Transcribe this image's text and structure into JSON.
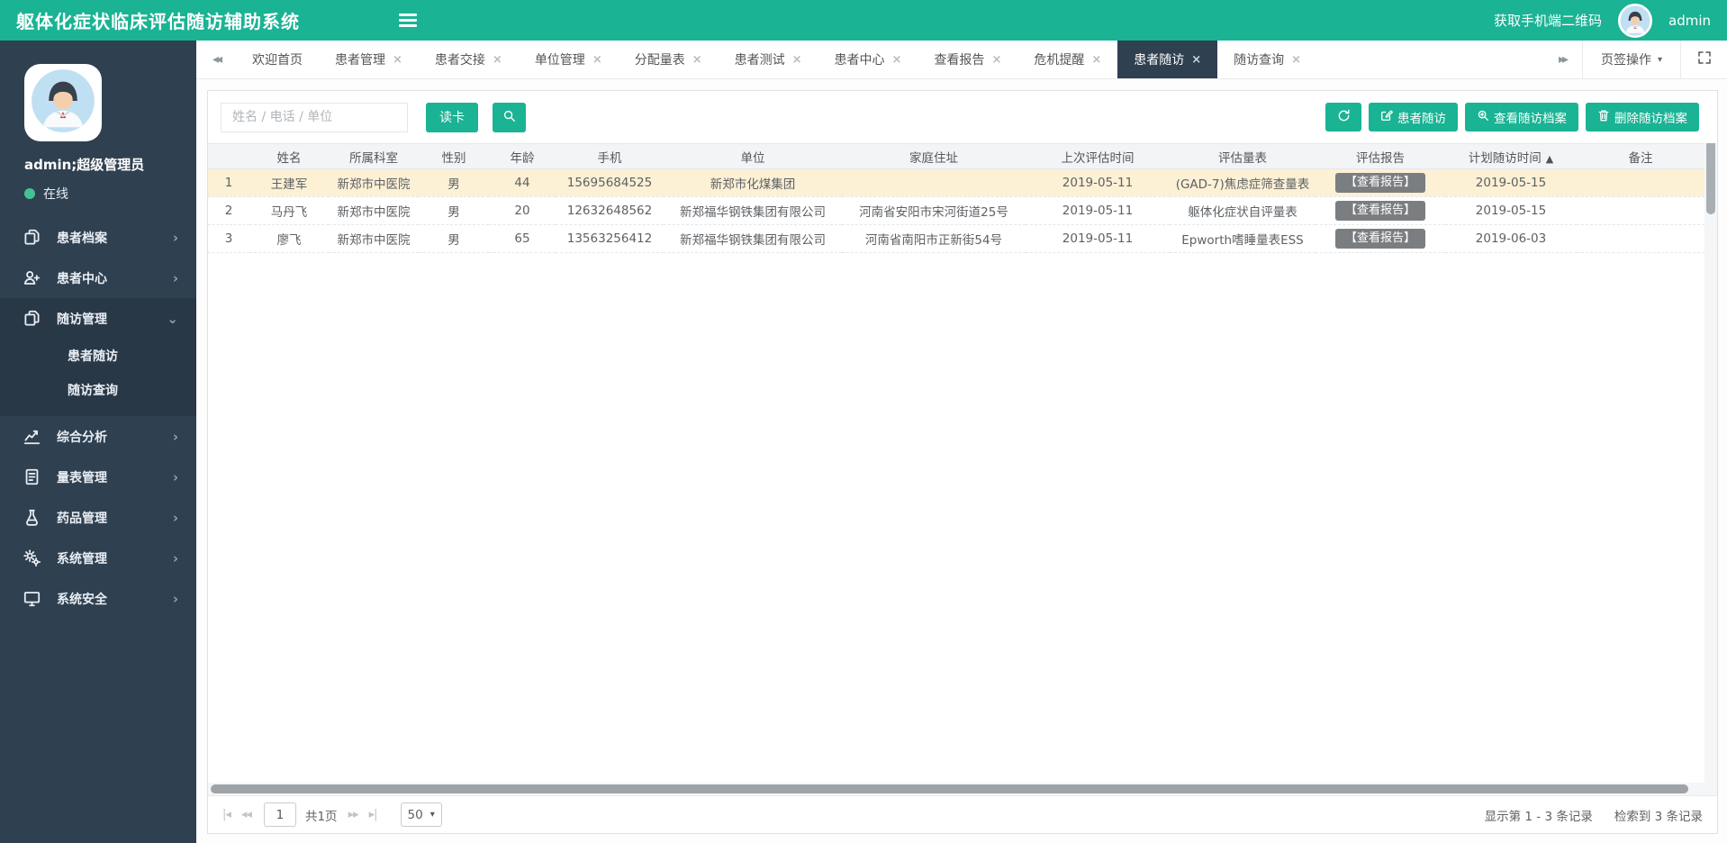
{
  "colors": {
    "accent": "#1ab394",
    "topbar_bg": "#1ab394",
    "sidebar_bg": "#2f4050",
    "sidebar_active_bg": "#293846",
    "tab_active_bg": "#2f4050",
    "selected_row_bg": "#fcf0d5",
    "report_button_bg": "#7b7e81"
  },
  "topbar": {
    "title": "躯体化症状临床评估随访辅助系统",
    "qr_label": "获取手机端二维码",
    "username": "admin"
  },
  "tabbar": {
    "ops_label": "页签操作",
    "tabs": [
      {
        "label": "欢迎首页",
        "closable": false,
        "active": false
      },
      {
        "label": "患者管理",
        "closable": true,
        "active": false
      },
      {
        "label": "患者交接",
        "closable": true,
        "active": false
      },
      {
        "label": "单位管理",
        "closable": true,
        "active": false
      },
      {
        "label": "分配量表",
        "closable": true,
        "active": false
      },
      {
        "label": "患者测试",
        "closable": true,
        "active": false
      },
      {
        "label": "患者中心",
        "closable": true,
        "active": false
      },
      {
        "label": "查看报告",
        "closable": true,
        "active": false
      },
      {
        "label": "危机提醒",
        "closable": true,
        "active": false
      },
      {
        "label": "患者随访",
        "closable": true,
        "active": true
      },
      {
        "label": "随访查询",
        "closable": true,
        "active": false
      }
    ]
  },
  "sidebar": {
    "user": {
      "name": "admin;超级管理员",
      "status": "在线"
    },
    "menu": [
      {
        "label": "患者档案",
        "icon": "copy-icon",
        "expanded": false,
        "children": []
      },
      {
        "label": "患者中心",
        "icon": "user-plus-icon",
        "expanded": false,
        "children": []
      },
      {
        "label": "随访管理",
        "icon": "copy-icon",
        "expanded": true,
        "children": [
          "患者随访",
          "随访查询"
        ]
      },
      {
        "label": "综合分析",
        "icon": "line-chart-icon",
        "expanded": false,
        "children": []
      },
      {
        "label": "量表管理",
        "icon": "file-text-icon",
        "expanded": false,
        "children": []
      },
      {
        "label": "药品管理",
        "icon": "flask-icon",
        "expanded": false,
        "children": []
      },
      {
        "label": "系统管理",
        "icon": "gears-icon",
        "expanded": false,
        "children": []
      },
      {
        "label": "系统安全",
        "icon": "monitor-icon",
        "expanded": false,
        "children": []
      }
    ]
  },
  "toolbar": {
    "search_placeholder": "姓名 / 电话 / 单位",
    "read_card_label": "读卡",
    "actions": [
      {
        "label": "患者随访",
        "icon": "edit-icon"
      },
      {
        "label": "查看随访档案",
        "icon": "zoom-icon"
      },
      {
        "label": "删除随访档案",
        "icon": "trash-icon"
      }
    ]
  },
  "table": {
    "columns": [
      "",
      "姓名",
      "所属科室",
      "性别",
      "年龄",
      "手机",
      "单位",
      "家庭住址",
      "上次评估时间",
      "评估量表",
      "评估报告",
      "计划随访时间",
      "备注"
    ],
    "sort_column": "计划随访时间",
    "report_button_label": "【查看报告】",
    "rows": [
      {
        "no": "1",
        "name": "王建军",
        "department": "新郑市中医院",
        "gender": "男",
        "age": "44",
        "phone": "15695684525",
        "company": "新郑市化煤集团",
        "address": "",
        "last_eval_date": "2019-05-11",
        "scale": "(GAD-7)焦虑症筛查量表",
        "planned_date": "2019-05-15",
        "remark": "",
        "selected": true
      },
      {
        "no": "2",
        "name": "马丹飞",
        "department": "新郑市中医院",
        "gender": "男",
        "age": "20",
        "phone": "12632648562",
        "company": "新郑福华钢铁集团有限公司",
        "address": "河南省安阳市宋河街道25号",
        "last_eval_date": "2019-05-11",
        "scale": "躯体化症状自评量表",
        "planned_date": "2019-05-15",
        "remark": "",
        "selected": false
      },
      {
        "no": "3",
        "name": "廖飞",
        "department": "新郑市中医院",
        "gender": "男",
        "age": "65",
        "phone": "13563256412",
        "company": "新郑福华钢铁集团有限公司",
        "address": "河南省南阳市正新街54号",
        "last_eval_date": "2019-05-11",
        "scale": "Epworth嗜睡量表ESS",
        "planned_date": "2019-06-03",
        "remark": "",
        "selected": false
      }
    ]
  },
  "pager": {
    "page": "1",
    "total_label": "共1页",
    "page_size": "50",
    "info": "显示第 1 - 3 条记录",
    "search_info": "检索到 3 条记录"
  }
}
